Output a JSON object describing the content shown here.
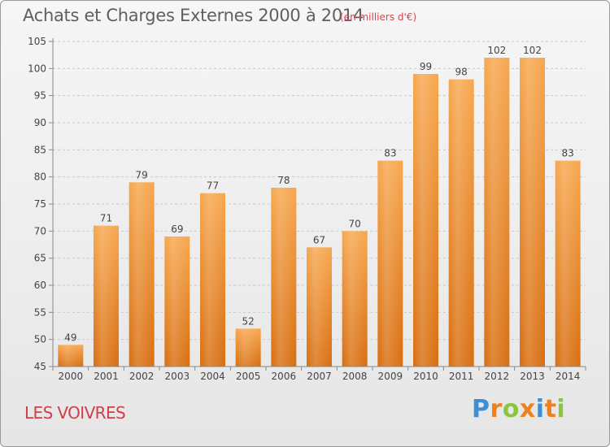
{
  "title": "Achats et Charges Externes 2000 à 2014",
  "subtitle": "(en milliers d'€)",
  "town": "LES VOIVRES",
  "logo": {
    "letters": [
      "P",
      "r",
      "o",
      "x",
      "i",
      "t",
      "i"
    ],
    "colors": [
      "#3f8fd6",
      "#f0801a",
      "#8cc63f",
      "#f0801a",
      "#3f8fd6",
      "#f0801a",
      "#8cc63f"
    ]
  },
  "colors": {
    "bar_top": "#f7a74e",
    "bar_bottom": "#d86e10",
    "grid": "#c8c8c8",
    "axis": "#888888"
  },
  "chart_data": {
    "type": "bar",
    "title": "Achats et Charges Externes 2000 à 2014",
    "subtitle": "(en milliers d'€)",
    "xlabel": "",
    "ylabel": "",
    "categories": [
      "2000",
      "2001",
      "2002",
      "2003",
      "2004",
      "2005",
      "2006",
      "2007",
      "2008",
      "2009",
      "2010",
      "2011",
      "2012",
      "2013",
      "2014"
    ],
    "values": [
      49,
      71,
      79,
      69,
      77,
      52,
      78,
      67,
      70,
      83,
      99,
      98,
      102,
      102,
      83
    ],
    "data_labels": [
      "49",
      "71",
      "79",
      "69",
      "77",
      "52",
      "78",
      "67",
      "70",
      "83",
      "99",
      "98",
      "102",
      "102",
      "83"
    ],
    "yticks": [
      "45",
      "50",
      "55",
      "60",
      "65",
      "70",
      "75",
      "80",
      "85",
      "90",
      "95",
      "100",
      "105"
    ],
    "ylim": [
      45,
      105
    ],
    "grid": true,
    "legend": false
  }
}
